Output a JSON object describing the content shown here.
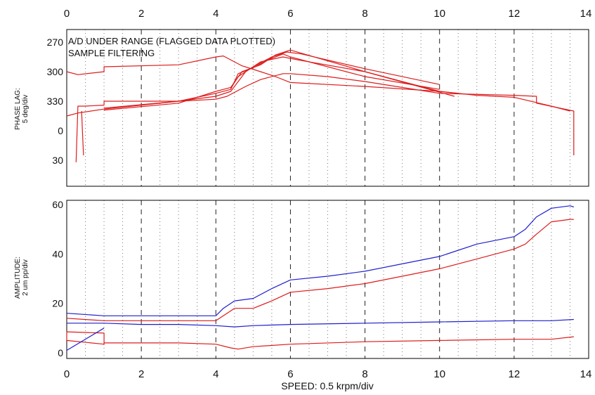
{
  "chart_data": [
    {
      "type": "line",
      "panel": "phase",
      "ylabel_line1": "PHASE LAG:",
      "ylabel_line2": "5 deg/div",
      "annotations": [
        "A/D UNDER RANGE (FLAGGED DATA PLOTTED)",
        "SAMPLE FILTERING"
      ],
      "x_ticks": [
        "0",
        "2",
        "4",
        "6",
        "8",
        "10",
        "12",
        "14"
      ],
      "y_ticks": [
        "270",
        "300",
        "330",
        "0",
        "30"
      ],
      "xlim": [
        0,
        14
      ],
      "grid": true,
      "series": [
        {
          "color": "#dd1c1c",
          "x": [
            0,
            0.3,
            1,
            1,
            3,
            4,
            4.2,
            4.7,
            5.2,
            5.6,
            6,
            8,
            10,
            11,
            12,
            13,
            13.5
          ],
          "y": [
            300,
            303,
            300,
            295,
            293,
            285,
            284,
            294,
            300,
            305,
            311,
            315,
            320,
            324,
            326,
            335,
            340
          ]
        },
        {
          "color": "#dd1c1c",
          "x": [
            0,
            0.3,
            1,
            2,
            3,
            4,
            4.4,
            4.8,
            5.2,
            5.8,
            6.2,
            8,
            10,
            10.5
          ],
          "y": [
            345,
            342,
            338,
            334,
            330,
            325,
            320,
            300,
            290,
            285,
            288,
            300,
            320,
            322
          ]
        },
        {
          "color": "#dd1c1c",
          "x": [
            1,
            3,
            4,
            4.4,
            4.6,
            5,
            5.4,
            5.8,
            6,
            8,
            10
          ],
          "y": [
            337,
            330,
            322,
            318,
            302,
            296,
            288,
            282,
            285,
            305,
            318
          ]
        },
        {
          "color": "#dd1c1c",
          "x": [
            1,
            3,
            4,
            4.4,
            4.7,
            5.2,
            5.6,
            6,
            8,
            10.4
          ],
          "y": [
            339,
            332,
            320,
            316,
            300,
            293,
            283,
            278,
            300,
            325
          ]
        },
        {
          "color": "#dd1c1c",
          "x": [
            4.4,
            4.6,
            5.0,
            5.5,
            5.9,
            6.3,
            8,
            10
          ],
          "y": [
            317,
            305,
            295,
            285,
            280,
            282,
            297,
            313
          ]
        },
        {
          "color": "#dd1c1c",
          "x": [
            0.25,
            0.3,
            0.5,
            1,
            1,
            2,
            3,
            4,
            4.3,
            4.8,
            5.2,
            5.8,
            6,
            7,
            8,
            9,
            10,
            12,
            12.6,
            12.6,
            13.6,
            13.6
          ],
          "y": [
            392,
            335,
            335,
            334,
            330,
            330,
            330,
            328,
            325,
            315,
            308,
            302,
            302,
            305,
            310,
            316,
            322,
            324,
            325,
            332,
            340,
            385
          ]
        },
        {
          "color": "#dd1c1c",
          "x": [
            0.4,
            0.42,
            0.45
          ],
          "y": [
            340,
            360,
            385
          ]
        }
      ]
    },
    {
      "type": "line",
      "panel": "amplitude",
      "ylabel_line1": "AMPLITUDE:",
      "ylabel_line2": "2 um pp/div",
      "xlabel": "SPEED: 0.5 krpm/div",
      "x_ticks": [
        "0",
        "2",
        "4",
        "6",
        "8",
        "10",
        "12",
        "14"
      ],
      "y_ticks": [
        "0",
        "20",
        "40",
        "60"
      ],
      "xlim": [
        0,
        14
      ],
      "ylim": [
        0,
        61
      ],
      "grid": true,
      "series": [
        {
          "color": "#1f1fcf",
          "x": [
            0,
            1,
            2,
            3,
            4,
            4.2,
            4.5,
            5,
            5.5,
            6,
            7,
            8,
            9,
            10,
            11,
            12,
            12.3,
            12.6,
            13,
            13.5,
            13.6
          ],
          "y": [
            16,
            15,
            15,
            15,
            15,
            18,
            21,
            22,
            26,
            29.5,
            31,
            33,
            36,
            39,
            44,
            47,
            50,
            55,
            58.5,
            59.5,
            59
          ]
        },
        {
          "color": "#1f1fcf",
          "x": [
            0,
            1,
            2,
            3,
            4,
            4.5,
            5,
            6,
            8,
            10,
            12,
            13,
            13.6
          ],
          "y": [
            12,
            12,
            11.5,
            11.5,
            11,
            10.5,
            11,
            11.5,
            12,
            12.5,
            13,
            13,
            13.5
          ]
        },
        {
          "color": "#dd1c1c",
          "x": [
            0,
            1,
            2,
            3,
            4,
            4.2,
            4.5,
            5,
            5.5,
            6,
            7,
            8,
            9,
            10,
            11,
            12,
            12.3,
            12.6,
            13,
            13.5,
            13.6
          ],
          "y": [
            14,
            13,
            13,
            13,
            13,
            15,
            18,
            18,
            21,
            24.5,
            26,
            28,
            31,
            34,
            38,
            42,
            44,
            48,
            53,
            54,
            54
          ]
        },
        {
          "color": "#dd1c1c",
          "x": [
            1,
            2,
            3,
            4,
            4.4,
            4.6,
            5,
            6,
            8,
            10,
            12,
            13,
            13.6
          ],
          "y": [
            4,
            4,
            4,
            3.5,
            2,
            1.5,
            2.5,
            3.5,
            4.5,
            5,
            5.5,
            5.5,
            6.5
          ]
        },
        {
          "color": "#dd1c1c",
          "x": [
            0,
            1,
            1,
            0,
            0
          ],
          "y": [
            5,
            3.5,
            8,
            8.5,
            5
          ]
        },
        {
          "color": "#1f1fcf",
          "x": [
            0,
            1
          ],
          "y": [
            1,
            10
          ]
        }
      ]
    }
  ]
}
